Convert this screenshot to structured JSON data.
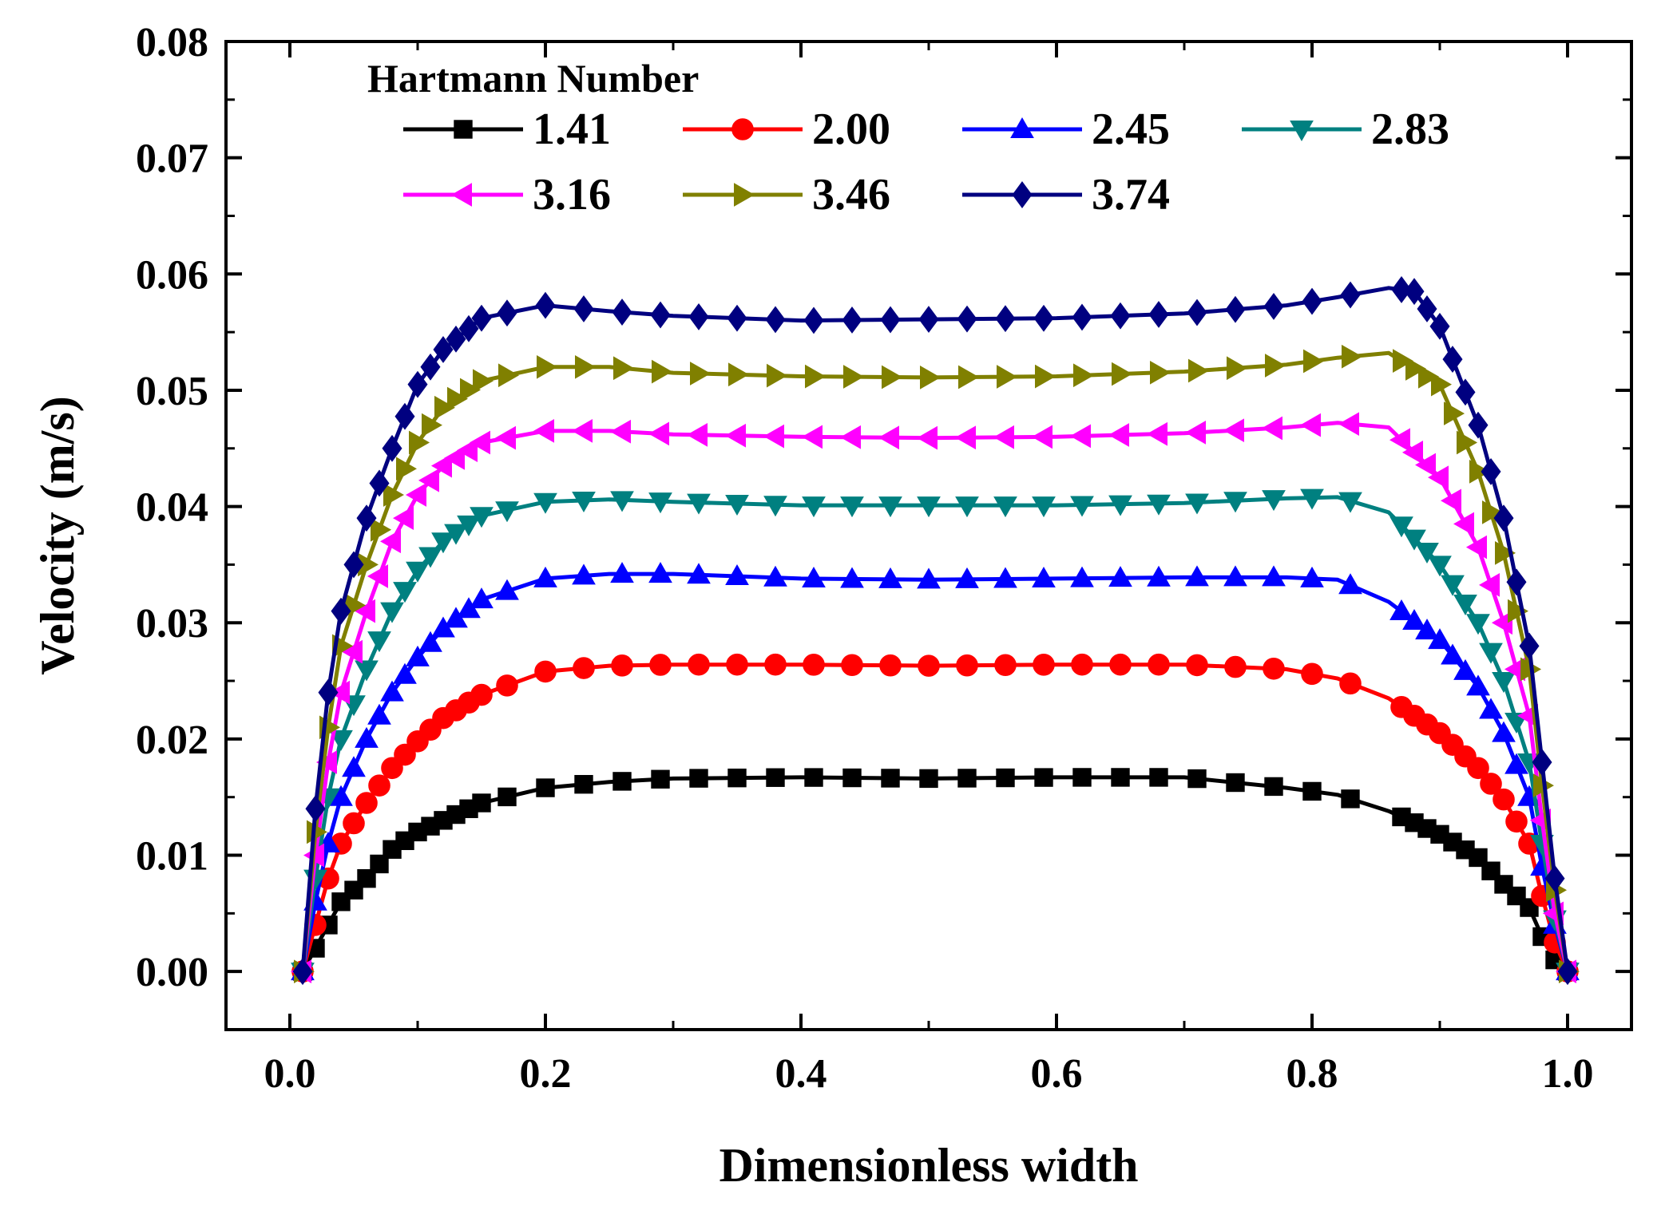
{
  "chart_data": {
    "type": "line",
    "title": "",
    "xlabel": "Dimensionless width",
    "ylabel": "Velocity (m/s)",
    "xlim": [
      -0.05,
      1.05
    ],
    "ylim": [
      -0.005,
      0.08
    ],
    "xticks": [
      0.0,
      0.2,
      0.4,
      0.6,
      0.8,
      1.0
    ],
    "xtick_labels": [
      "0.0",
      "0.2",
      "0.4",
      "0.6",
      "0.8",
      "1.0"
    ],
    "yticks": [
      0.0,
      0.01,
      0.02,
      0.03,
      0.04,
      0.05,
      0.06,
      0.07,
      0.08
    ],
    "ytick_labels": [
      "0.00",
      "0.01",
      "0.02",
      "0.03",
      "0.04",
      "0.05",
      "0.06",
      "0.07",
      "0.08"
    ],
    "legend_title": "Hartmann Number",
    "legend_position": "top-left",
    "series": [
      {
        "name": "1.41",
        "color": "#000000",
        "marker": "square",
        "x": [
          0.01,
          0.02,
          0.03,
          0.04,
          0.06,
          0.08,
          0.1,
          0.12,
          0.15,
          0.2,
          0.25,
          0.3,
          0.4,
          0.5,
          0.6,
          0.7,
          0.78,
          0.82,
          0.86,
          0.9,
          0.93,
          0.95,
          0.97,
          0.98,
          0.99,
          1.0
        ],
        "values": [
          0.0,
          0.002,
          0.004,
          0.006,
          0.008,
          0.0105,
          0.012,
          0.013,
          0.0145,
          0.0158,
          0.0163,
          0.0166,
          0.0167,
          0.0166,
          0.0167,
          0.0167,
          0.0158,
          0.0152,
          0.0138,
          0.0118,
          0.0098,
          0.0075,
          0.0055,
          0.003,
          0.001,
          0.0
        ]
      },
      {
        "name": "2.00",
        "color": "#ff0000",
        "marker": "circle",
        "x": [
          0.01,
          0.02,
          0.03,
          0.04,
          0.06,
          0.08,
          0.1,
          0.12,
          0.15,
          0.2,
          0.25,
          0.3,
          0.4,
          0.5,
          0.6,
          0.7,
          0.78,
          0.82,
          0.86,
          0.9,
          0.93,
          0.95,
          0.97,
          0.98,
          0.99,
          1.0
        ],
        "values": [
          0.0,
          0.004,
          0.008,
          0.011,
          0.0145,
          0.0175,
          0.0198,
          0.0218,
          0.0238,
          0.0258,
          0.0263,
          0.0264,
          0.0264,
          0.0263,
          0.0264,
          0.0264,
          0.026,
          0.0252,
          0.0235,
          0.0205,
          0.0175,
          0.0148,
          0.011,
          0.0065,
          0.0025,
          0.0
        ]
      },
      {
        "name": "2.45",
        "color": "#0000ff",
        "marker": "triangle-up",
        "x": [
          0.01,
          0.02,
          0.03,
          0.04,
          0.06,
          0.08,
          0.1,
          0.12,
          0.15,
          0.2,
          0.25,
          0.3,
          0.4,
          0.5,
          0.6,
          0.7,
          0.78,
          0.82,
          0.86,
          0.9,
          0.93,
          0.95,
          0.97,
          0.98,
          0.99,
          1.0
        ],
        "values": [
          0.0,
          0.006,
          0.011,
          0.015,
          0.02,
          0.024,
          0.027,
          0.0295,
          0.032,
          0.0338,
          0.0342,
          0.0342,
          0.0338,
          0.0337,
          0.0338,
          0.0339,
          0.0339,
          0.0337,
          0.0318,
          0.0285,
          0.0245,
          0.0205,
          0.015,
          0.009,
          0.004,
          0.0
        ]
      },
      {
        "name": "2.83",
        "color": "#008080",
        "marker": "triangle-down",
        "x": [
          0.01,
          0.02,
          0.03,
          0.04,
          0.06,
          0.08,
          0.1,
          0.12,
          0.15,
          0.2,
          0.25,
          0.3,
          0.4,
          0.5,
          0.6,
          0.7,
          0.78,
          0.82,
          0.86,
          0.9,
          0.93,
          0.95,
          0.97,
          0.98,
          0.99,
          1.0
        ],
        "values": [
          0.0,
          0.008,
          0.015,
          0.02,
          0.026,
          0.031,
          0.0345,
          0.037,
          0.0392,
          0.0404,
          0.0406,
          0.0404,
          0.0401,
          0.0401,
          0.0401,
          0.0403,
          0.0407,
          0.0408,
          0.0395,
          0.035,
          0.03,
          0.025,
          0.018,
          0.011,
          0.0045,
          0.0
        ]
      },
      {
        "name": "3.16",
        "color": "#ff00ff",
        "marker": "triangle-left",
        "x": [
          0.01,
          0.02,
          0.03,
          0.04,
          0.06,
          0.08,
          0.1,
          0.12,
          0.15,
          0.2,
          0.25,
          0.3,
          0.4,
          0.5,
          0.6,
          0.7,
          0.78,
          0.82,
          0.86,
          0.9,
          0.93,
          0.95,
          0.97,
          0.98,
          0.99,
          1.0
        ],
        "values": [
          0.0,
          0.01,
          0.018,
          0.024,
          0.031,
          0.037,
          0.041,
          0.0435,
          0.0455,
          0.0465,
          0.0465,
          0.0462,
          0.046,
          0.0459,
          0.046,
          0.0463,
          0.0468,
          0.0472,
          0.0468,
          0.0425,
          0.0365,
          0.03,
          0.022,
          0.013,
          0.005,
          0.0
        ]
      },
      {
        "name": "3.46",
        "color": "#808000",
        "marker": "triangle-right",
        "x": [
          0.01,
          0.02,
          0.03,
          0.04,
          0.06,
          0.08,
          0.1,
          0.12,
          0.15,
          0.2,
          0.25,
          0.3,
          0.4,
          0.5,
          0.6,
          0.7,
          0.78,
          0.82,
          0.86,
          0.9,
          0.93,
          0.95,
          0.97,
          0.98,
          0.99,
          1.0
        ],
        "values": [
          0.0,
          0.012,
          0.021,
          0.028,
          0.035,
          0.041,
          0.0455,
          0.0485,
          0.0508,
          0.052,
          0.052,
          0.0515,
          0.0512,
          0.0511,
          0.0512,
          0.0516,
          0.0522,
          0.0528,
          0.0532,
          0.0505,
          0.043,
          0.036,
          0.026,
          0.016,
          0.007,
          0.0
        ]
      },
      {
        "name": "3.74",
        "color": "#000080",
        "marker": "diamond",
        "x": [
          0.01,
          0.02,
          0.03,
          0.04,
          0.06,
          0.08,
          0.1,
          0.12,
          0.15,
          0.2,
          0.25,
          0.3,
          0.4,
          0.5,
          0.6,
          0.7,
          0.78,
          0.82,
          0.86,
          0.88,
          0.9,
          0.93,
          0.95,
          0.97,
          0.98,
          0.99,
          1.0
        ],
        "values": [
          0.0,
          0.014,
          0.024,
          0.031,
          0.039,
          0.045,
          0.0505,
          0.0535,
          0.0562,
          0.0573,
          0.0568,
          0.0564,
          0.056,
          0.0561,
          0.0562,
          0.0566,
          0.0573,
          0.058,
          0.0588,
          0.0585,
          0.0555,
          0.047,
          0.039,
          0.028,
          0.018,
          0.008,
          0.0
        ]
      }
    ]
  }
}
